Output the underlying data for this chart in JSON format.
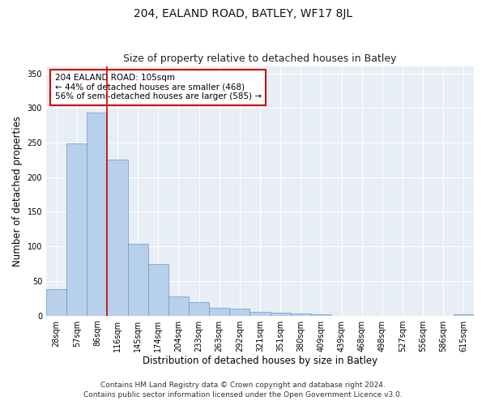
{
  "title": "204, EALAND ROAD, BATLEY, WF17 8JL",
  "subtitle": "Size of property relative to detached houses in Batley",
  "xlabel": "Distribution of detached houses by size in Batley",
  "ylabel": "Number of detached properties",
  "categories": [
    "28sqm",
    "57sqm",
    "86sqm",
    "116sqm",
    "145sqm",
    "174sqm",
    "204sqm",
    "233sqm",
    "263sqm",
    "292sqm",
    "321sqm",
    "351sqm",
    "380sqm",
    "409sqm",
    "439sqm",
    "468sqm",
    "498sqm",
    "527sqm",
    "556sqm",
    "586sqm",
    "615sqm"
  ],
  "values": [
    38,
    249,
    293,
    225,
    104,
    75,
    28,
    19,
    11,
    10,
    5,
    4,
    3,
    2,
    0,
    0,
    0,
    0,
    0,
    0,
    2
  ],
  "bar_color": "#b8d0ea",
  "bar_edge_color": "#6699cc",
  "vline_x": 2.5,
  "vline_color": "#cc0000",
  "annotation_text": "204 EALAND ROAD: 105sqm\n← 44% of detached houses are smaller (468)\n56% of semi-detached houses are larger (585) →",
  "annotation_box_color": "#ffffff",
  "annotation_box_edge_color": "#cc0000",
  "ylim": [
    0,
    360
  ],
  "yticks": [
    0,
    50,
    100,
    150,
    200,
    250,
    300,
    350
  ],
  "footer_line1": "Contains HM Land Registry data © Crown copyright and database right 2024.",
  "footer_line2": "Contains public sector information licensed under the Open Government Licence v3.0.",
  "plot_bg_color": "#e8eef5",
  "title_fontsize": 10,
  "subtitle_fontsize": 9,
  "axis_label_fontsize": 8.5,
  "tick_fontsize": 7,
  "annotation_fontsize": 7.5,
  "footer_fontsize": 6.5
}
